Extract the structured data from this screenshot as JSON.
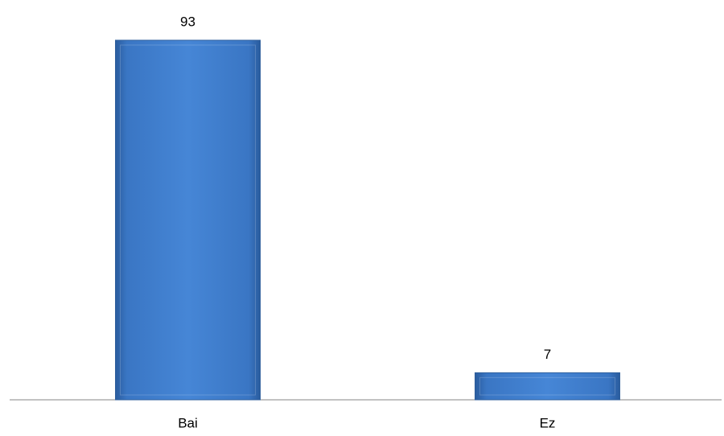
{
  "chart_data": {
    "type": "bar",
    "categories": [
      "Bai",
      "Ez"
    ],
    "values": [
      93,
      7
    ],
    "color": "#3f7fd0"
  }
}
